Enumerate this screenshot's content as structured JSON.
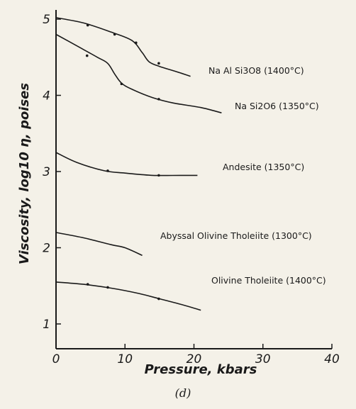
{
  "chart_data": {
    "type": "line",
    "xlabel": "Pressure, kbars",
    "ylabel": "Viscosity, log10 η, poises",
    "xlim": [
      0,
      40
    ],
    "ylim": [
      0.3,
      5.2
    ],
    "x_ticks": [
      0,
      10,
      20,
      30,
      40
    ],
    "x_tick_labels": [
      "0",
      "10",
      "20",
      "30",
      "40"
    ],
    "y_ticks": [
      1,
      2,
      3,
      4,
      5
    ],
    "y_tick_labels": [
      "1",
      "2",
      "3",
      "4",
      "5"
    ],
    "grid": false,
    "caption": "(d)",
    "series": [
      {
        "name": "Na Al Si3O8 (1400°C)",
        "curve": [
          [
            0,
            5.02
          ],
          [
            4,
            4.95
          ],
          [
            8,
            4.83
          ],
          [
            11,
            4.72
          ],
          [
            12.5,
            4.56
          ],
          [
            13.5,
            4.44
          ],
          [
            15,
            4.38
          ],
          [
            17.5,
            4.31
          ],
          [
            19.5,
            4.25
          ]
        ],
        "points": [
          [
            4.6,
            4.92
          ],
          [
            8.5,
            4.8
          ],
          [
            11.6,
            4.69
          ],
          [
            14.9,
            4.42
          ]
        ]
      },
      {
        "name": "Na Si2O6 (1350°C)",
        "curve": [
          [
            0,
            4.8
          ],
          [
            3,
            4.65
          ],
          [
            6,
            4.5
          ],
          [
            7.5,
            4.42
          ],
          [
            8.5,
            4.28
          ],
          [
            9.5,
            4.16
          ],
          [
            11,
            4.08
          ],
          [
            14,
            3.97
          ],
          [
            17,
            3.9
          ],
          [
            21,
            3.84
          ],
          [
            24,
            3.77
          ]
        ],
        "points": [
          [
            4.5,
            4.52
          ],
          [
            9.5,
            4.15
          ],
          [
            14.9,
            3.95
          ]
        ]
      },
      {
        "name": "Andesite (1350°C)",
        "curve": [
          [
            0,
            3.25
          ],
          [
            3,
            3.12
          ],
          [
            7,
            3.01
          ],
          [
            10,
            2.98
          ],
          [
            14,
            2.95
          ],
          [
            18,
            2.95
          ],
          [
            20.5,
            2.95
          ]
        ],
        "points": [
          [
            7.5,
            3.01
          ],
          [
            14.9,
            2.95
          ]
        ]
      },
      {
        "name": "Abyssal Olivine Tholeiite (1300°C)",
        "curve": [
          [
            0,
            2.2
          ],
          [
            4,
            2.13
          ],
          [
            8,
            2.04
          ],
          [
            10,
            2.0
          ],
          [
            12.5,
            1.9
          ]
        ],
        "points": []
      },
      {
        "name": "Olivine Tholeiite (1400°C)",
        "curve": [
          [
            0,
            1.55
          ],
          [
            4,
            1.52
          ],
          [
            8,
            1.47
          ],
          [
            12,
            1.4
          ],
          [
            15,
            1.33
          ],
          [
            18,
            1.26
          ],
          [
            21,
            1.18
          ]
        ],
        "points": [
          [
            4.6,
            1.52
          ],
          [
            7.5,
            1.48
          ],
          [
            14.9,
            1.33
          ]
        ]
      }
    ]
  }
}
